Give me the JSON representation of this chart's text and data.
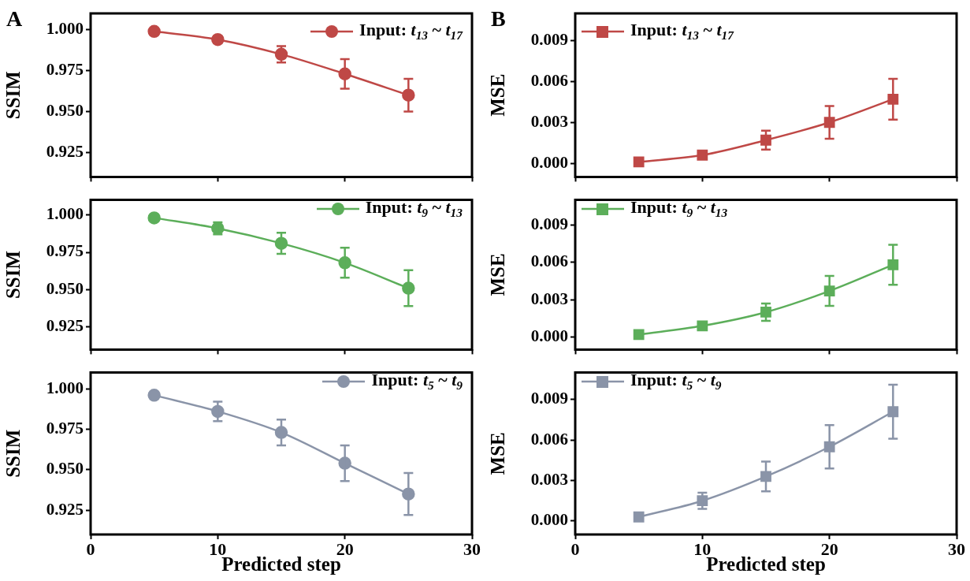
{
  "chart_data": [
    {
      "type": "line",
      "title": "A",
      "ylabel": "SSIM",
      "x": [
        5,
        10,
        15,
        20,
        25
      ],
      "xlim": [
        0,
        30
      ],
      "xticks": [
        0,
        10,
        20,
        30
      ],
      "ylim": [
        0.91,
        1.01
      ],
      "yticks": [
        {
          "value": 0.925,
          "label": "0.925"
        },
        {
          "value": 0.95,
          "label": "0.950"
        },
        {
          "value": 0.975,
          "label": "0.975"
        },
        {
          "value": 1,
          "label": "1.000"
        }
      ],
      "marker": "circle",
      "legend": "top right",
      "tick_labels": "y",
      "grid": false,
      "series": [
        {
          "name": "Input: t$_{13}$ ~ t$_{17}$",
          "color": "#bf4846",
          "values": [
            0.999,
            0.994,
            0.985,
            0.973,
            0.96
          ],
          "errors": [
            null,
            0.002,
            0.005,
            0.009,
            0.01
          ]
        }
      ]
    },
    {
      "type": "line",
      "title": "B",
      "ylabel": "MSE",
      "x": [
        5,
        10,
        15,
        20,
        25
      ],
      "xlim": [
        0,
        30
      ],
      "xticks": [
        0,
        10,
        20,
        30
      ],
      "ylim": [
        -0.001,
        0.011
      ],
      "yticks": [
        {
          "value": 0,
          "label": "0.000"
        },
        {
          "value": 0.003,
          "label": "0.003"
        },
        {
          "value": 0.006,
          "label": "0.006"
        },
        {
          "value": 0.009,
          "label": "0.009"
        }
      ],
      "marker": "square",
      "legend": "top left",
      "tick_labels": "y",
      "grid": false,
      "series": [
        {
          "name": "Input: t$_{13}$ ~ t$_{17}$",
          "color": "#bf4846",
          "values": [
            0.0001,
            0.0006,
            0.0017,
            0.003,
            0.0047
          ],
          "errors": [
            null,
            null,
            0.0007,
            0.0012,
            0.0015
          ]
        }
      ]
    },
    {
      "type": "line",
      "ylabel": "SSIM",
      "x": [
        5,
        10,
        15,
        20,
        25
      ],
      "xlim": [
        0,
        30
      ],
      "xticks": [
        0,
        10,
        20,
        30
      ],
      "ylim": [
        0.91,
        1.01
      ],
      "yticks": [
        {
          "value": 0.925,
          "label": "0.925"
        },
        {
          "value": 0.95,
          "label": "0.950"
        },
        {
          "value": 0.975,
          "label": "0.975"
        },
        {
          "value": 1,
          "label": "1.000"
        }
      ],
      "marker": "circle",
      "legend": "top right",
      "tick_labels": "y",
      "grid": false,
      "series": [
        {
          "name": "Input: t$_{9}$ ~ t$_{13}$",
          "color": "#5cae5a",
          "values": [
            0.998,
            0.991,
            0.981,
            0.968,
            0.951
          ],
          "errors": [
            null,
            0.004,
            0.007,
            0.01,
            0.012
          ]
        }
      ]
    },
    {
      "type": "line",
      "ylabel": "MSE",
      "x": [
        5,
        10,
        15,
        20,
        25
      ],
      "xlim": [
        0,
        30
      ],
      "xticks": [
        0,
        10,
        20,
        30
      ],
      "ylim": [
        -0.001,
        0.011
      ],
      "yticks": [
        {
          "value": 0,
          "label": "0.000"
        },
        {
          "value": 0.003,
          "label": "0.003"
        },
        {
          "value": 0.006,
          "label": "0.006"
        },
        {
          "value": 0.009,
          "label": "0.009"
        }
      ],
      "marker": "square",
      "legend": "top left",
      "tick_labels": "y",
      "grid": false,
      "series": [
        {
          "name": "Input: t$_{9}$ ~ t$_{13}$",
          "color": "#5cae5a",
          "values": [
            0.0002,
            0.0009,
            0.002,
            0.0037,
            0.0058
          ],
          "errors": [
            null,
            null,
            0.0007,
            0.0012,
            0.0016
          ]
        }
      ]
    },
    {
      "type": "line",
      "ylabel": "SSIM",
      "xlabel": "Predicted step",
      "x": [
        5,
        10,
        15,
        20,
        25
      ],
      "xlim": [
        0,
        30
      ],
      "xticks": [
        0,
        10,
        20,
        30
      ],
      "ylim": [
        0.91,
        1.01
      ],
      "yticks": [
        {
          "value": 0.925,
          "label": "0.925"
        },
        {
          "value": 0.95,
          "label": "0.950"
        },
        {
          "value": 0.975,
          "label": "0.975"
        },
        {
          "value": 1,
          "label": "1.000"
        }
      ],
      "marker": "circle",
      "legend": "top right",
      "grid": false,
      "series": [
        {
          "name": "Input: t$_{5}$ ~ t$_{9}$",
          "color": "#8a94a8",
          "values": [
            0.996,
            0.986,
            0.973,
            0.954,
            0.935
          ],
          "errors": [
            null,
            0.006,
            0.008,
            0.011,
            0.013
          ]
        }
      ]
    },
    {
      "type": "line",
      "ylabel": "MSE",
      "xlabel": "Predicted step",
      "x": [
        5,
        10,
        15,
        20,
        25
      ],
      "xlim": [
        0,
        30
      ],
      "xticks": [
        0,
        10,
        20,
        30
      ],
      "ylim": [
        -0.001,
        0.011
      ],
      "yticks": [
        {
          "value": 0,
          "label": "0.000"
        },
        {
          "value": 0.003,
          "label": "0.003"
        },
        {
          "value": 0.006,
          "label": "0.006"
        },
        {
          "value": 0.009,
          "label": "0.009"
        }
      ],
      "marker": "square",
      "legend": "top left",
      "grid": false,
      "series": [
        {
          "name": "Input: t$_{5}$ ~ t$_{9}$",
          "color": "#8a94a8",
          "values": [
            0.0003,
            0.0015,
            0.0033,
            0.0055,
            0.0081
          ],
          "errors": [
            null,
            0.0006,
            0.0011,
            0.0016,
            0.002
          ]
        }
      ]
    }
  ]
}
